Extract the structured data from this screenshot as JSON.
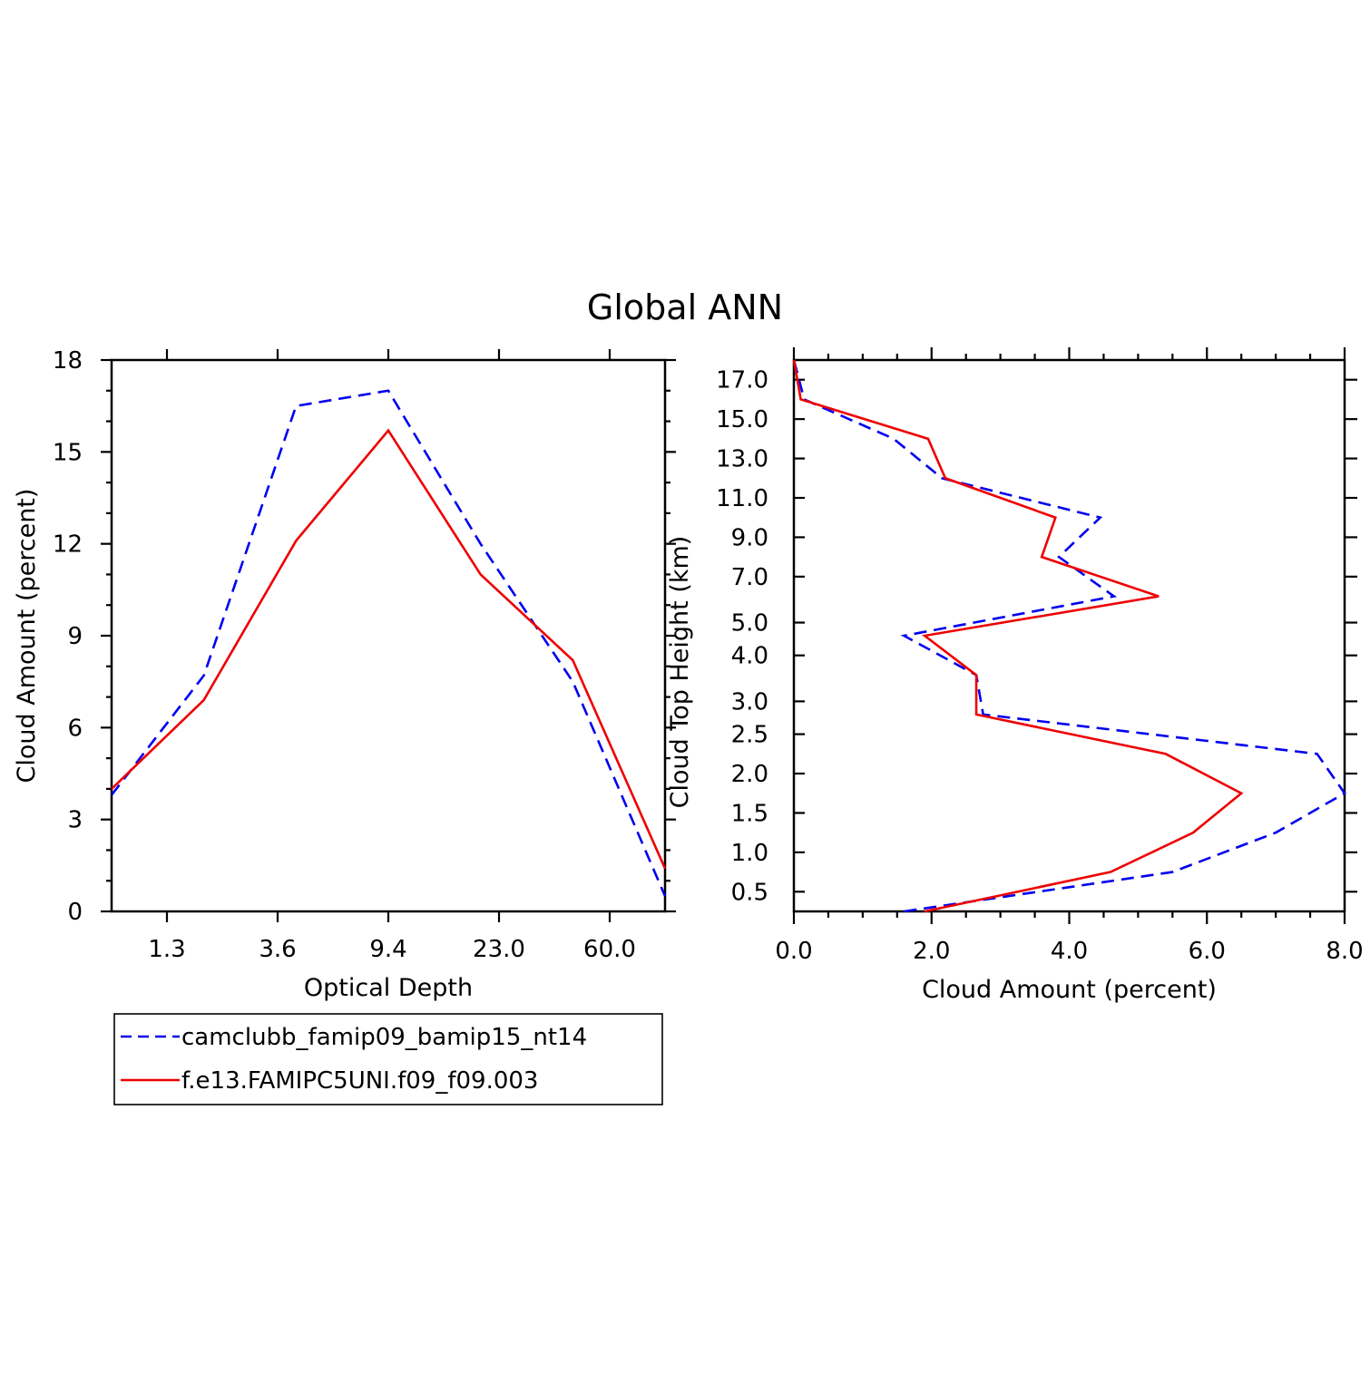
{
  "title": "Global ANN",
  "colors": {
    "series1": "#0000ee",
    "series2": "#ee0000",
    "axis": "#000000"
  },
  "legend": {
    "placement": "bottom-left",
    "items": [
      {
        "label": "camclubb_famip09_bamip15_nt14",
        "color": "#0000ee",
        "style": "dashed"
      },
      {
        "label": "f.e13.FAMIPC5UNI.f09_f09.003",
        "color": "#ee0000",
        "style": "solid"
      }
    ]
  },
  "chart_data": [
    {
      "type": "line",
      "xlabel": "Optical Depth",
      "ylabel": "Cloud Amount (percent)",
      "x": [
        0.5,
        1.5,
        2.5,
        3.5,
        4.5,
        5.5,
        6.5
      ],
      "xlim": [
        0.5,
        6.5
      ],
      "xticks": [
        1.1,
        2.3,
        3.5,
        4.7,
        5.9
      ],
      "xtick_labels": [
        "1.3",
        "3.6",
        "9.4",
        "23.0",
        "60.0"
      ],
      "ylim": [
        0,
        18
      ],
      "yticks": [
        0,
        3,
        6,
        9,
        12,
        15,
        18
      ],
      "ytick_labels": [
        "0",
        "3",
        "6",
        "9",
        "12",
        "15",
        "18"
      ],
      "series": [
        {
          "name": "camclubb_famip09_bamip15_nt14",
          "values": [
            3.8,
            7.7,
            16.5,
            17.0,
            12.0,
            7.5,
            0.5
          ]
        },
        {
          "name": "f.e13.FAMIPC5UNI.f09_f09.003",
          "values": [
            4.0,
            6.9,
            12.1,
            15.7,
            11.0,
            8.2,
            1.4
          ]
        }
      ]
    },
    {
      "type": "line",
      "xlabel": "Cloud Amount (percent)",
      "ylabel": "Cloud Top Height (km)",
      "xlim": [
        0,
        8
      ],
      "xticks": [
        0,
        2,
        4,
        6,
        8
      ],
      "xtick_labels": [
        "0.0",
        "2.0",
        "4.0",
        "6.0",
        "8.0"
      ],
      "y": [
        0.25,
        0.75,
        1.25,
        1.75,
        2.25,
        2.75,
        3.5,
        4.5,
        6.0,
        8.0,
        10.0,
        12.0,
        14.0,
        16.0,
        18.0
      ],
      "ylim": [
        0.25,
        18.0
      ],
      "yticks": [
        0.5,
        1.0,
        1.5,
        2.0,
        2.5,
        3.0,
        4.0,
        5.0,
        7.0,
        9.0,
        11.0,
        13.0,
        15.0,
        17.0
      ],
      "ytick_labels": [
        "0.5",
        "1.0",
        "1.5",
        "2.0",
        "2.5",
        "3.0",
        "4.0",
        "5.0",
        "7.0",
        "9.0",
        "11.0",
        "13.0",
        "15.0",
        "17.0"
      ],
      "series": [
        {
          "name": "camclubb_famip09_bamip15_nt14",
          "values": [
            1.6,
            5.5,
            7.0,
            8.0,
            7.6,
            2.75,
            2.65,
            1.6,
            4.65,
            3.85,
            4.45,
            2.15,
            1.45,
            0.15,
            0.0
          ]
        },
        {
          "name": "f.e13.FAMIPC5UNI.f09_f09.003",
          "values": [
            1.9,
            4.6,
            5.8,
            6.5,
            5.4,
            2.65,
            2.65,
            1.9,
            5.3,
            3.6,
            3.8,
            2.2,
            1.95,
            0.1,
            0.0
          ]
        }
      ]
    }
  ]
}
